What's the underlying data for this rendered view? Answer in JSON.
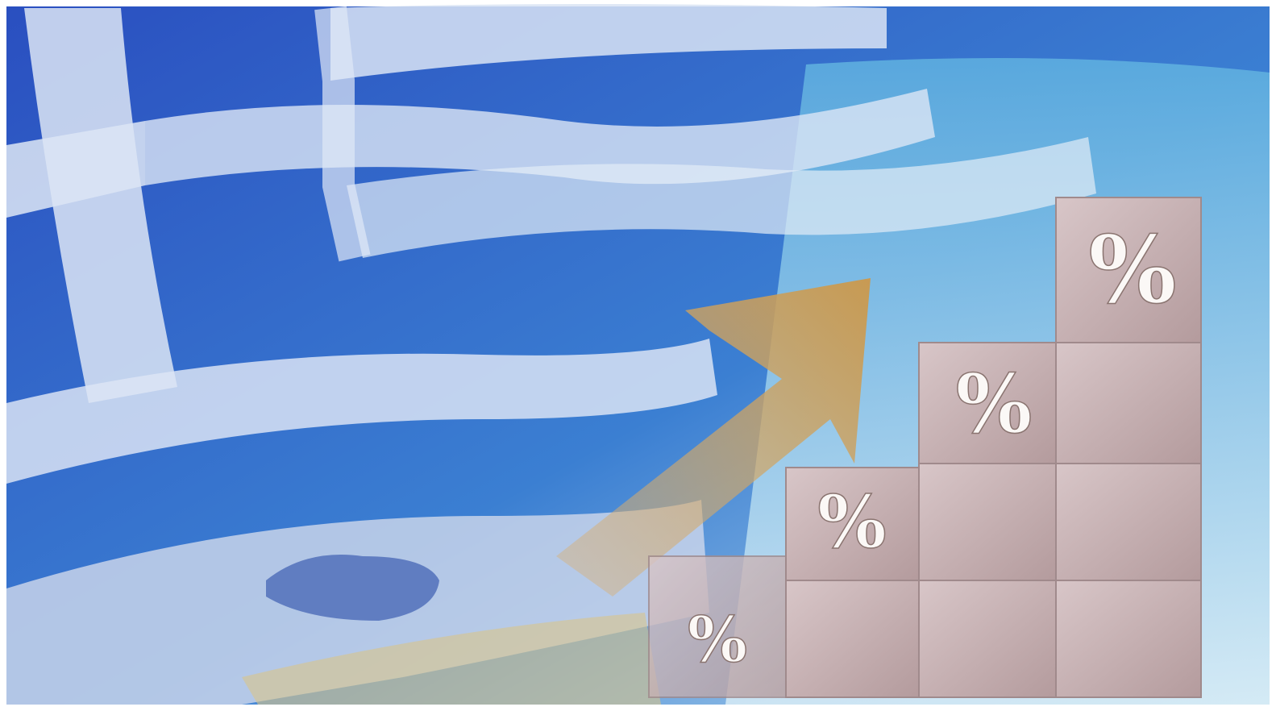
{
  "blocks": [
    {
      "label": "%"
    },
    {
      "label": "%"
    },
    {
      "label": "%"
    },
    {
      "label": "%"
    }
  ]
}
